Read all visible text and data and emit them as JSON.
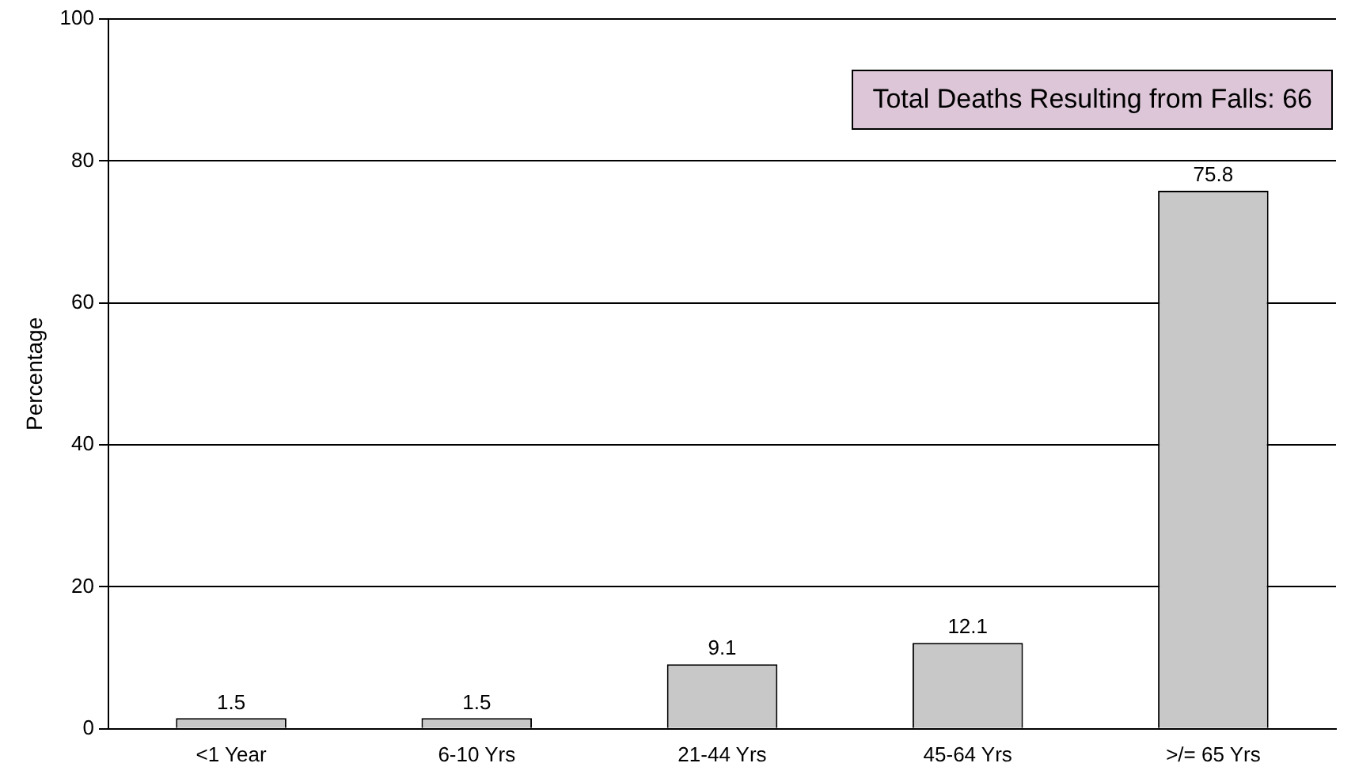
{
  "chart_data": {
    "type": "bar",
    "ylabel": "Percentage",
    "categories": [
      "<1 Year",
      "6-10 Yrs",
      "21-44 Yrs",
      "45-64 Yrs",
      ">/= 65 Yrs"
    ],
    "values": [
      1.5,
      1.5,
      9.1,
      12.1,
      75.8
    ],
    "color": "#c8c8c8",
    "ylim": [
      0,
      100
    ],
    "yticks": [
      0,
      20,
      40,
      60,
      80,
      100
    ],
    "grid": "y",
    "legend": false,
    "data_labels": true,
    "annotations": [
      "Total Deaths Resulting from Falls: 66"
    ]
  }
}
